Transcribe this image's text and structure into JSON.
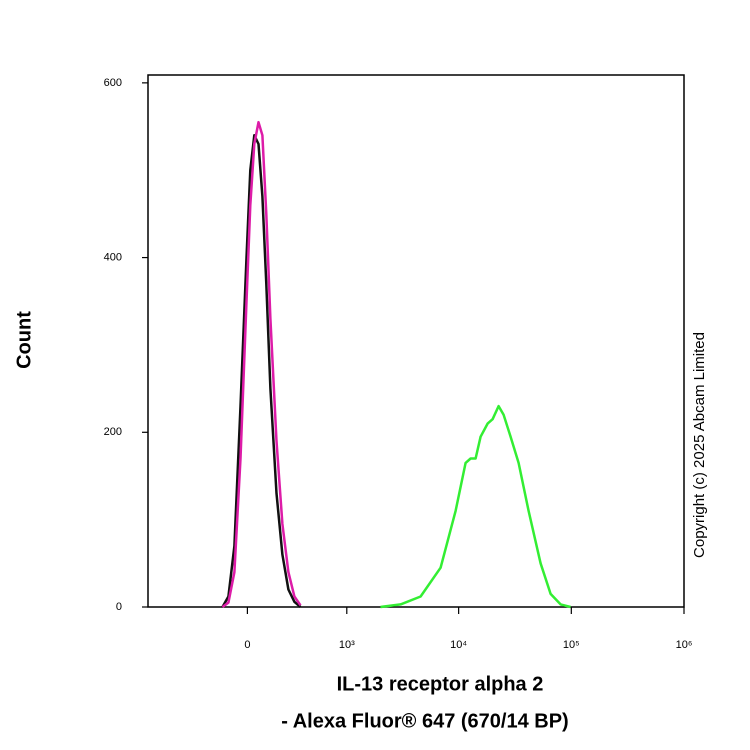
{
  "chart_data": {
    "type": "line",
    "xlabel": [
      "IL-13 receptor alpha 2",
      "- Alexa Fluor® 647 (670/14 BP)"
    ],
    "ylabel": "Count",
    "annotation": "Copyright (c) 2025 Abcam Limited",
    "xscale": "biexponential",
    "xlim": [
      -1000,
      1000000
    ],
    "xticks": [
      0,
      {
        "value": 1000,
        "label": "10³"
      },
      {
        "value": 10000,
        "label": "10⁴"
      },
      {
        "value": 100000,
        "label": "10⁵"
      },
      {
        "value": 1000000,
        "label": "10⁶"
      }
    ],
    "ylim": [
      0,
      609
    ],
    "yticks": [
      0,
      200,
      400,
      600
    ],
    "series": [
      {
        "color": "#33ee33",
        "x": [
          2017,
          3050,
          4590,
          6910,
          9400,
          11520,
          12760,
          14150,
          15660,
          18080,
          20010,
          22630,
          25070,
          28920,
          34070,
          41790,
          53400,
          65550,
          80370,
          98650
        ],
        "values": [
          0,
          3,
          12,
          45,
          110,
          165,
          170,
          170,
          195,
          210,
          215,
          230,
          220,
          195,
          165,
          110,
          50,
          15,
          3,
          0
        ]
      },
      {
        "color": "#111111",
        "x": [
          -142,
          -106,
          -72,
          -38,
          -5,
          16,
          38,
          61,
          83,
          106,
          130,
          168,
          208,
          251,
          298,
          350
        ],
        "values": [
          0,
          12,
          70,
          230,
          400,
          500,
          540,
          530,
          470,
          370,
          250,
          130,
          60,
          20,
          6,
          0
        ]
      },
      {
        "color": "#dd1ca8",
        "x": [
          -142,
          -106,
          -72,
          -38,
          -5,
          16,
          38,
          61,
          83,
          106,
          130,
          168,
          208,
          251,
          298,
          350
        ],
        "values": [
          0,
          5,
          40,
          170,
          350,
          460,
          530,
          555,
          540,
          450,
          330,
          190,
          95,
          40,
          12,
          2
        ]
      }
    ]
  }
}
